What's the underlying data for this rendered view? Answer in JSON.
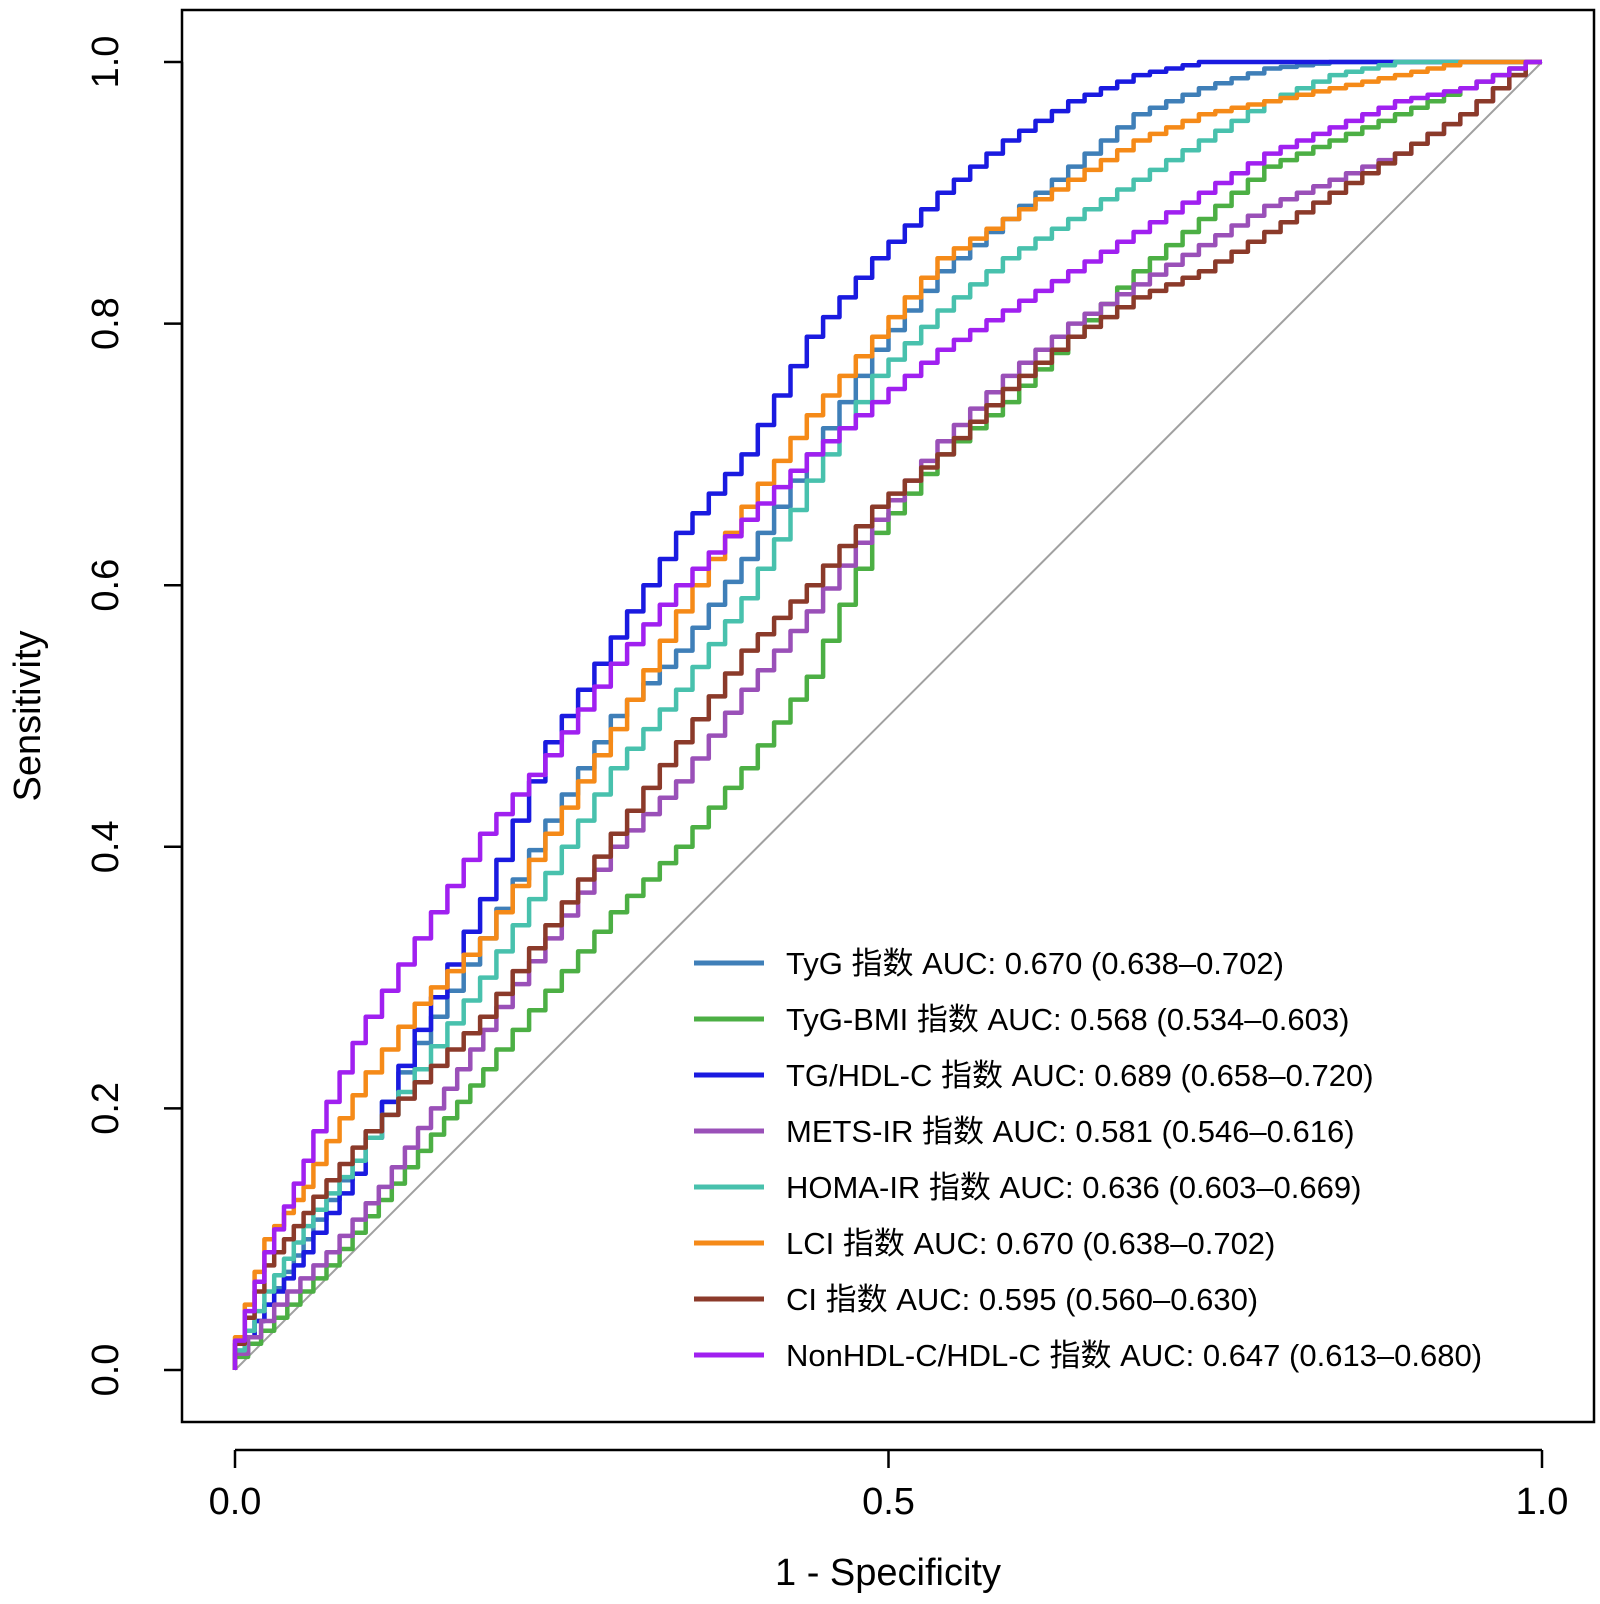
{
  "chart_data": {
    "type": "line",
    "title": "",
    "xlabel": "1 - Specificity",
    "ylabel": "Sensitivity",
    "xlim": [
      0,
      1
    ],
    "ylim": [
      0,
      1
    ],
    "x_ticks": [
      "0.0",
      "0.5",
      "1.0"
    ],
    "y_ticks": [
      "0.0",
      "0.2",
      "0.4",
      "0.6",
      "0.8",
      "1.0"
    ],
    "legend_position": "bottom-right",
    "reference_line": {
      "from": [
        0,
        0
      ],
      "to": [
        1,
        1
      ],
      "color": "#a0a0a0"
    },
    "series": [
      {
        "name": "TyG 指数 AUC: 0.670 (0.638–0.702)",
        "color": "#3f7fb8",
        "x": [
          0,
          0.03,
          0.06,
          0.1,
          0.15,
          0.2,
          0.25,
          0.3,
          0.35,
          0.4,
          0.45,
          0.5,
          0.55,
          0.6,
          0.65,
          0.7,
          0.75,
          0.8,
          0.85,
          0.9,
          0.95,
          1
        ],
        "y": [
          0,
          0.05,
          0.1,
          0.16,
          0.25,
          0.33,
          0.42,
          0.5,
          0.55,
          0.62,
          0.7,
          0.78,
          0.84,
          0.88,
          0.92,
          0.96,
          0.98,
          0.995,
          1,
          1,
          1,
          1
        ]
      },
      {
        "name": "TyG-BMI 指数 AUC: 0.568 (0.534–0.603)",
        "color": "#4caf44",
        "x": [
          0,
          0.04,
          0.08,
          0.12,
          0.16,
          0.2,
          0.25,
          0.3,
          0.35,
          0.4,
          0.45,
          0.5,
          0.55,
          0.6,
          0.65,
          0.7,
          0.75,
          0.8,
          0.85,
          0.9,
          0.95,
          1
        ],
        "y": [
          0,
          0.04,
          0.08,
          0.13,
          0.18,
          0.23,
          0.29,
          0.35,
          0.4,
          0.46,
          0.53,
          0.64,
          0.7,
          0.74,
          0.79,
          0.84,
          0.88,
          0.92,
          0.94,
          0.96,
          0.98,
          1
        ]
      },
      {
        "name": "TG/HDL-C 指数 AUC: 0.689 (0.658–0.720)",
        "color": "#1a1ae0",
        "x": [
          0,
          0.03,
          0.06,
          0.1,
          0.15,
          0.2,
          0.25,
          0.3,
          0.35,
          0.4,
          0.45,
          0.5,
          0.55,
          0.6,
          0.65,
          0.7,
          0.75,
          0.8,
          0.85,
          0.9,
          0.95,
          1
        ],
        "y": [
          0,
          0.05,
          0.09,
          0.15,
          0.26,
          0.36,
          0.48,
          0.56,
          0.64,
          0.7,
          0.79,
          0.85,
          0.9,
          0.94,
          0.97,
          0.99,
          1,
          1,
          1,
          1,
          1,
          1
        ]
      },
      {
        "name": "METS-IR 指数 AUC: 0.581 (0.546–0.616)",
        "color": "#9a50b8",
        "x": [
          0,
          0.04,
          0.08,
          0.12,
          0.16,
          0.2,
          0.25,
          0.3,
          0.35,
          0.4,
          0.45,
          0.5,
          0.55,
          0.6,
          0.65,
          0.7,
          0.75,
          0.8,
          0.85,
          0.9,
          0.95,
          1
        ],
        "y": [
          0,
          0.05,
          0.09,
          0.14,
          0.2,
          0.26,
          0.33,
          0.4,
          0.45,
          0.52,
          0.58,
          0.65,
          0.71,
          0.76,
          0.8,
          0.83,
          0.86,
          0.89,
          0.91,
          0.93,
          0.96,
          1
        ]
      },
      {
        "name": "HOMA-IR 指数 AUC: 0.636 (0.603–0.669)",
        "color": "#48c1ad",
        "x": [
          0,
          0.03,
          0.06,
          0.1,
          0.15,
          0.2,
          0.25,
          0.3,
          0.35,
          0.4,
          0.45,
          0.5,
          0.55,
          0.6,
          0.65,
          0.7,
          0.75,
          0.8,
          0.85,
          0.9,
          0.95,
          1
        ],
        "y": [
          0,
          0.06,
          0.11,
          0.16,
          0.23,
          0.3,
          0.38,
          0.46,
          0.52,
          0.59,
          0.68,
          0.76,
          0.81,
          0.85,
          0.88,
          0.91,
          0.94,
          0.97,
          0.99,
          1,
          1,
          1
        ]
      },
      {
        "name": "LCI 指数 AUC: 0.670 (0.638–0.702)",
        "color": "#f58a18",
        "x": [
          0,
          0.03,
          0.06,
          0.1,
          0.15,
          0.2,
          0.25,
          0.3,
          0.35,
          0.4,
          0.45,
          0.5,
          0.55,
          0.6,
          0.65,
          0.7,
          0.75,
          0.8,
          0.85,
          0.9,
          0.95,
          1
        ],
        "y": [
          0,
          0.1,
          0.14,
          0.21,
          0.28,
          0.33,
          0.41,
          0.49,
          0.58,
          0.66,
          0.73,
          0.79,
          0.85,
          0.88,
          0.91,
          0.94,
          0.96,
          0.97,
          0.98,
          0.99,
          1,
          1
        ]
      },
      {
        "name": "CI 指数 AUC: 0.595 (0.560–0.630)",
        "color": "#8b3a2a",
        "x": [
          0,
          0.03,
          0.06,
          0.1,
          0.15,
          0.2,
          0.25,
          0.3,
          0.35,
          0.4,
          0.45,
          0.5,
          0.55,
          0.6,
          0.65,
          0.7,
          0.75,
          0.8,
          0.85,
          0.9,
          0.95,
          1
        ],
        "y": [
          0,
          0.08,
          0.12,
          0.17,
          0.22,
          0.27,
          0.34,
          0.41,
          0.48,
          0.55,
          0.6,
          0.66,
          0.7,
          0.75,
          0.79,
          0.82,
          0.84,
          0.87,
          0.9,
          0.93,
          0.96,
          1
        ]
      },
      {
        "name": "NonHDL-C/HDL-C 指数 AUC: 0.647 (0.613–0.680)",
        "color": "#a020f0",
        "x": [
          0,
          0.03,
          0.06,
          0.1,
          0.15,
          0.2,
          0.25,
          0.3,
          0.35,
          0.4,
          0.45,
          0.5,
          0.55,
          0.6,
          0.65,
          0.7,
          0.75,
          0.8,
          0.85,
          0.9,
          0.95,
          1
        ],
        "y": [
          0,
          0.09,
          0.16,
          0.25,
          0.33,
          0.41,
          0.47,
          0.54,
          0.6,
          0.65,
          0.7,
          0.74,
          0.78,
          0.81,
          0.84,
          0.87,
          0.9,
          0.93,
          0.95,
          0.97,
          0.98,
          1
        ]
      }
    ]
  }
}
